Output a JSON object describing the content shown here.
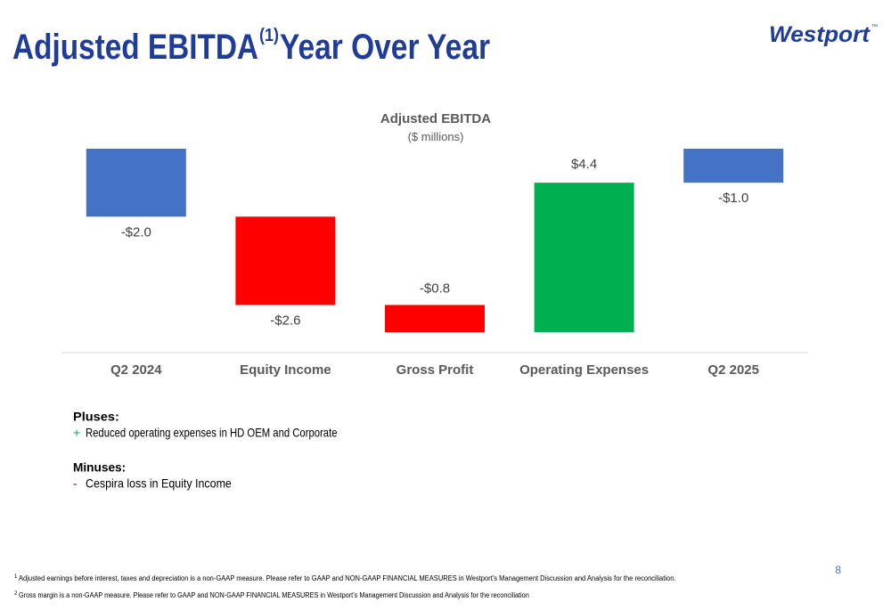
{
  "header": {
    "title_main": "Adjusted EBITDA",
    "title_superscript": "(1)",
    "title_rest": "Year Over Year",
    "logo": "Westport",
    "logo_mark": "™"
  },
  "chart_data": {
    "type": "waterfall",
    "title": "Adjusted EBITDA",
    "subtitle": "($ millions)",
    "categories": [
      "Q2 2024",
      "Equity Income",
      "Gross Profit",
      "Operating Expenses",
      "Q2 2025"
    ],
    "values": [
      -2.0,
      -2.6,
      -0.8,
      4.4,
      -1.0
    ],
    "value_labels": [
      "-$2.0",
      "-$2.6",
      "-$0.8",
      "$4.4",
      "-$1.0"
    ],
    "measures": [
      "absolute",
      "relative",
      "relative",
      "relative",
      "total"
    ],
    "colors": [
      "#4472c4",
      "#ff0000",
      "#ff0000",
      "#00b050",
      "#4472c4"
    ]
  },
  "notes": [
    {
      "heading": "Pluses:",
      "items": [
        {
          "marker": "+",
          "text": "Reduced operating expenses in HD OEM and Corporate"
        }
      ]
    },
    {
      "heading": "Minuses:",
      "items": [
        {
          "marker": "-",
          "text": "Cespira loss in Equity Income"
        }
      ]
    }
  ],
  "page_number": "8",
  "footnotes": [
    {
      "mark": "1",
      "text": "Adjusted earnings before interest, taxes and depreciation is a non-GAAP measure. Please refer to GAAP and NON-GAAP FINANCIAL MEASURES in Westport’s Management Discussion and Analysis for the reconciliation."
    },
    {
      "mark": "2",
      "text": "Gross margin is a non-GAAP measure. Please refer to GAAP and NON-GAAP FINANCIAL MEASURES in Westport’s Management Discussion and Analysis for the reconciliation"
    }
  ]
}
